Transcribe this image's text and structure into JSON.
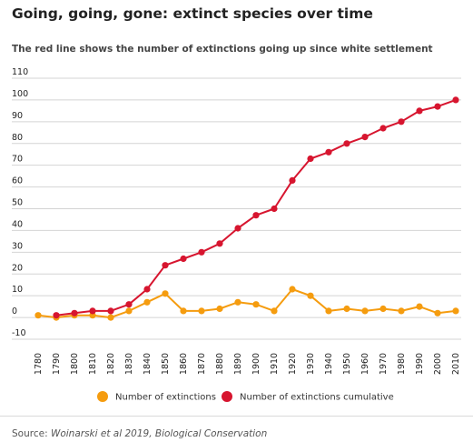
{
  "title": "Going, going, gone: extinct species over time",
  "subtitle": "The red line shows the number of extinctions going up since white settlement",
  "source_prefix": "Source: ",
  "source_ref": "Woinarski et al 2019, Biological Conservation",
  "colors": {
    "extinctions": "#f59c0f",
    "cumulative": "#d7152f",
    "gridline": "#d4d4d4",
    "axis_text": "#222222"
  },
  "chart_data": {
    "type": "line",
    "title": "Going, going, gone: extinct species over time",
    "subtitle": "The red line shows the number of extinctions going up since white settlement",
    "xlabel": "",
    "ylabel": "",
    "x": [
      "1780",
      "1790",
      "1800",
      "1810",
      "1820",
      "1830",
      "1840",
      "1850",
      "1860",
      "1870",
      "1880",
      "1890",
      "1900",
      "1910",
      "1920",
      "1930",
      "1940",
      "1950",
      "1960",
      "1970",
      "1980",
      "1990",
      "2000",
      "2010"
    ],
    "yticks": [
      -10,
      0,
      10,
      20,
      30,
      40,
      50,
      60,
      70,
      80,
      90,
      100,
      110
    ],
    "ylim": [
      -10,
      110
    ],
    "grid": true,
    "legend_position": "bottom",
    "series": [
      {
        "name": "Number of extinctions",
        "color": "#f59c0f",
        "values": [
          1,
          0,
          1,
          1,
          0,
          3,
          7,
          11,
          3,
          3,
          4,
          7,
          6,
          3,
          13,
          10,
          3,
          4,
          3,
          4,
          3,
          5,
          2,
          3
        ]
      },
      {
        "name": "Number of extinctions cumulative",
        "color": "#d7152f",
        "values": [
          null,
          1,
          2,
          3,
          3,
          6,
          13,
          24,
          27,
          30,
          34,
          41,
          47,
          50,
          63,
          73,
          76,
          80,
          83,
          87,
          90,
          95,
          97,
          100
        ]
      }
    ]
  }
}
